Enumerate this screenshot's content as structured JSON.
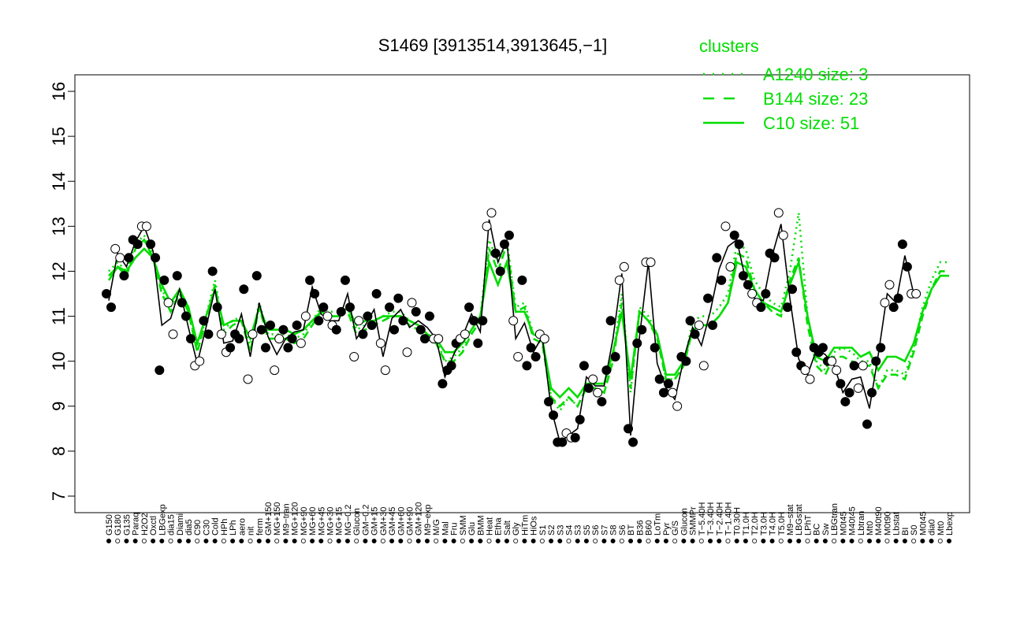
{
  "chart_data": {
    "type": "line",
    "title": "S1469 [3913514,3913645,−1]",
    "ylim": [
      7,
      16
    ],
    "yticks": [
      "7",
      "8",
      "9",
      "10",
      "11",
      "12",
      "13",
      "14",
      "15",
      "16"
    ],
    "xtick_labels": [
      "G150",
      "G180",
      "G135",
      "Paraq",
      "H2O2",
      "Oxctl",
      "LBGexp",
      "dia15",
      "Diami",
      "dia5",
      "C90",
      "C30",
      "Cold",
      "HPh",
      "LPh",
      "aero",
      "nit",
      "ferm",
      "GM+150",
      "MG+150",
      "M9−tran",
      "MG+120",
      "MG+90",
      "MG+60",
      "MG+45",
      "MG+30",
      "MG+15",
      "MG−0.2",
      "Glucon",
      "GM−0.2",
      "GM+15",
      "GM+30",
      "GM+45",
      "GM+60",
      "GM+90",
      "GM+120",
      "M9−exp",
      "M/G",
      "Mal",
      "Fru",
      "SMM",
      "Glu",
      "BMM",
      "Heat",
      "Etha",
      "Salt",
      "Gly",
      "HiTm",
      "HiOs",
      "S1",
      "S2",
      "S3",
      "S4",
      "S3",
      "S5",
      "S6",
      "S7",
      "S8",
      "S6",
      "BT",
      "B36",
      "B60",
      "LoTm",
      "Pyr",
      "G/S",
      "Glucon",
      "SMMPr",
      "T−5.40H",
      "T−3.40H",
      "T−2.40H",
      "T−1.40H",
      "T0.30H",
      "T1.0H",
      "T2.0H",
      "T3.0H",
      "T4.0H",
      "T5.0H",
      "M9−stat",
      "LBGstat",
      "LPhT",
      "BC",
      "Sw",
      "LBGtran",
      "M0t45",
      "M40t45",
      "Lbtran",
      "Mt0",
      "M40t90",
      "M0t90",
      "Lbstat",
      "BI",
      "S0",
      "M0t45",
      "dia0",
      "Mt0",
      "Lbexp"
    ],
    "series": [
      {
        "name": "A1240 size: 3",
        "style": "dotted",
        "values": [
          12.0,
          12.2,
          12.0,
          12.6,
          12.8,
          12.4,
          11.6,
          11.2,
          11.6,
          11.2,
          10.2,
          11.0,
          11.8,
          10.7,
          10.9,
          11.0,
          10.3,
          11.3,
          10.6,
          10.6,
          10.6,
          10.5,
          10.6,
          10.9,
          11.2,
          11.1,
          11.1,
          11.2,
          10.7,
          10.8,
          10.9,
          11.0,
          11.1,
          11.1,
          10.9,
          10.8,
          10.6,
          10.5,
          10.0,
          10.1,
          10.3,
          10.7,
          11.0,
          12.7,
          12.2,
          12.7,
          11.2,
          11.3,
          10.6,
          10.5,
          9.2,
          8.9,
          9.2,
          9.0,
          9.4,
          9.4,
          9.3,
          10.1,
          11.5,
          9.3,
          11.2,
          11.0,
          10.6,
          9.6,
          9.6,
          9.9,
          10.9,
          11.0,
          11.0,
          11.2,
          11.5,
          12.6,
          12.5,
          11.8,
          11.5,
          11.3,
          11.2,
          12.0,
          13.3,
          11.0,
          10.0,
          9.8,
          10.2,
          10.3,
          10.2,
          10.0,
          10.0,
          9.4,
          9.8,
          9.8,
          9.7,
          10.3,
          11.2,
          11.8,
          12.2,
          12.2
        ]
      },
      {
        "name": "B144 size: 23",
        "style": "dashed",
        "values": [
          11.9,
          12.1,
          11.9,
          12.5,
          12.7,
          12.3,
          11.5,
          11.1,
          11.5,
          11.1,
          10.2,
          10.9,
          11.7,
          10.6,
          10.8,
          10.9,
          10.2,
          11.2,
          10.5,
          10.5,
          10.5,
          10.4,
          10.5,
          10.8,
          11.1,
          11.0,
          11.0,
          11.1,
          10.6,
          10.7,
          10.8,
          10.9,
          11.0,
          11.0,
          10.8,
          10.7,
          10.5,
          10.4,
          10.0,
          10.0,
          10.2,
          10.6,
          10.9,
          12.5,
          12.0,
          12.6,
          11.1,
          11.2,
          10.5,
          10.4,
          9.2,
          9.0,
          9.2,
          9.0,
          9.4,
          9.4,
          9.3,
          10.0,
          11.3,
          9.4,
          11.1,
          10.9,
          10.5,
          9.6,
          9.6,
          9.9,
          10.7,
          10.8,
          10.8,
          11.0,
          11.3,
          12.4,
          12.3,
          11.6,
          11.3,
          11.1,
          11.0,
          11.8,
          12.3,
          10.8,
          9.9,
          9.7,
          10.1,
          10.1,
          10.0,
          9.9,
          9.9,
          9.4,
          9.7,
          9.7,
          9.6,
          10.2,
          11.0,
          11.6,
          12.0,
          12.0
        ]
      },
      {
        "name": "C10 size: 51",
        "style": "solid",
        "values": [
          11.8,
          12.1,
          12.0,
          12.3,
          12.5,
          12.3,
          11.7,
          11.3,
          11.6,
          11.2,
          10.4,
          11.0,
          11.6,
          10.8,
          10.9,
          10.9,
          10.5,
          11.2,
          10.7,
          10.7,
          10.7,
          10.6,
          10.7,
          10.9,
          11.1,
          11.0,
          11.0,
          11.2,
          10.8,
          10.9,
          10.9,
          11.0,
          11.0,
          11.0,
          10.9,
          10.8,
          10.6,
          10.5,
          10.2,
          10.2,
          10.4,
          10.7,
          11.0,
          12.2,
          11.7,
          12.2,
          11.1,
          11.1,
          10.6,
          10.5,
          9.4,
          9.2,
          9.4,
          9.2,
          9.5,
          9.5,
          9.5,
          10.2,
          11.1,
          9.6,
          11.1,
          10.9,
          10.6,
          9.7,
          9.7,
          10.0,
          10.7,
          10.8,
          10.8,
          11.0,
          11.3,
          12.2,
          12.1,
          11.6,
          11.3,
          11.2,
          11.1,
          11.7,
          12.2,
          11.0,
          10.1,
          10.0,
          10.3,
          10.3,
          10.3,
          10.1,
          10.2,
          9.8,
          10.1,
          10.1,
          10.0,
          10.4,
          11.1,
          11.6,
          11.9,
          11.9
        ]
      }
    ],
    "points": [
      [
        0,
        11.5
      ],
      [
        0,
        11.2
      ],
      [
        1,
        12.5
      ],
      [
        1,
        12.3
      ],
      [
        2,
        11.9
      ],
      [
        2,
        12.3
      ],
      [
        3,
        12.7
      ],
      [
        3,
        12.6
      ],
      [
        4,
        13.0
      ],
      [
        4,
        13.0
      ],
      [
        5,
        12.6
      ],
      [
        5,
        12.3
      ],
      [
        6,
        9.8
      ],
      [
        6,
        11.8
      ],
      [
        7,
        11.3
      ],
      [
        7,
        10.6
      ],
      [
        8,
        11.9
      ],
      [
        8,
        11.3
      ],
      [
        9,
        11.0
      ],
      [
        9,
        10.5
      ],
      [
        10,
        9.9
      ],
      [
        10,
        10.0
      ],
      [
        11,
        10.9
      ],
      [
        11,
        10.6
      ],
      [
        12,
        12.0
      ],
      [
        12,
        11.2
      ],
      [
        13,
        10.6
      ],
      [
        13,
        10.2
      ],
      [
        14,
        10.3
      ],
      [
        14,
        10.6
      ],
      [
        15,
        10.5
      ],
      [
        15,
        11.6
      ],
      [
        16,
        9.6
      ],
      [
        16,
        10.6
      ],
      [
        17,
        11.9
      ],
      [
        17,
        10.7
      ],
      [
        18,
        10.3
      ],
      [
        18,
        10.8
      ],
      [
        19,
        9.8
      ],
      [
        19,
        10.5
      ],
      [
        20,
        10.7
      ],
      [
        20,
        10.3
      ],
      [
        21,
        10.5
      ],
      [
        21,
        10.8
      ],
      [
        22,
        10.4
      ],
      [
        22,
        11.0
      ],
      [
        23,
        11.8
      ],
      [
        23,
        11.5
      ],
      [
        24,
        10.9
      ],
      [
        24,
        11.2
      ],
      [
        25,
        11.0
      ],
      [
        25,
        10.8
      ],
      [
        26,
        10.7
      ],
      [
        26,
        11.1
      ],
      [
        27,
        11.8
      ],
      [
        27,
        11.2
      ],
      [
        28,
        10.1
      ],
      [
        28,
        10.9
      ],
      [
        29,
        10.6
      ],
      [
        29,
        11.0
      ],
      [
        30,
        10.8
      ],
      [
        30,
        11.5
      ],
      [
        31,
        10.4
      ],
      [
        31,
        9.8
      ],
      [
        32,
        11.2
      ],
      [
        32,
        10.7
      ],
      [
        33,
        11.4
      ],
      [
        33,
        10.9
      ],
      [
        34,
        10.2
      ],
      [
        34,
        11.3
      ],
      [
        35,
        11.1
      ],
      [
        35,
        10.7
      ],
      [
        36,
        10.5
      ],
      [
        36,
        11.0
      ],
      [
        37,
        10.5
      ],
      [
        37,
        10.5
      ],
      [
        38,
        9.5
      ],
      [
        38,
        9.8
      ],
      [
        39,
        9.9
      ],
      [
        39,
        10.4
      ],
      [
        40,
        10.5
      ],
      [
        40,
        10.6
      ],
      [
        41,
        11.2
      ],
      [
        41,
        10.9
      ],
      [
        42,
        10.4
      ],
      [
        42,
        10.9
      ],
      [
        43,
        13.0
      ],
      [
        43,
        13.3
      ],
      [
        44,
        12.4
      ],
      [
        44,
        12.0
      ],
      [
        45,
        12.6
      ],
      [
        45,
        12.8
      ],
      [
        46,
        10.9
      ],
      [
        46,
        10.1
      ],
      [
        47,
        11.8
      ],
      [
        47,
        9.9
      ],
      [
        48,
        10.3
      ],
      [
        48,
        10.1
      ],
      [
        49,
        10.6
      ],
      [
        49,
        10.5
      ],
      [
        50,
        9.1
      ],
      [
        50,
        8.8
      ],
      [
        51,
        8.2
      ],
      [
        51,
        8.2
      ],
      [
        52,
        8.4
      ],
      [
        52,
        8.3
      ],
      [
        53,
        8.3
      ],
      [
        53,
        8.7
      ],
      [
        54,
        9.9
      ],
      [
        54,
        9.4
      ],
      [
        55,
        9.6
      ],
      [
        55,
        9.3
      ],
      [
        56,
        9.1
      ],
      [
        56,
        9.8
      ],
      [
        57,
        10.9
      ],
      [
        57,
        10.1
      ],
      [
        58,
        11.8
      ],
      [
        58,
        12.1
      ],
      [
        59,
        8.5
      ],
      [
        59,
        8.2
      ],
      [
        60,
        10.4
      ],
      [
        60,
        10.7
      ],
      [
        61,
        12.2
      ],
      [
        61,
        12.2
      ],
      [
        62,
        10.3
      ],
      [
        62,
        9.6
      ],
      [
        63,
        9.3
      ],
      [
        63,
        9.5
      ],
      [
        64,
        9.3
      ],
      [
        64,
        9.0
      ],
      [
        65,
        10.1
      ],
      [
        65,
        10.0
      ],
      [
        66,
        10.9
      ],
      [
        66,
        10.6
      ],
      [
        67,
        10.8
      ],
      [
        67,
        9.9
      ],
      [
        68,
        11.4
      ],
      [
        68,
        10.8
      ],
      [
        69,
        12.3
      ],
      [
        69,
        11.8
      ],
      [
        70,
        13.0
      ],
      [
        70,
        12.1
      ],
      [
        71,
        12.8
      ],
      [
        71,
        12.6
      ],
      [
        72,
        11.9
      ],
      [
        72,
        11.7
      ],
      [
        73,
        11.5
      ],
      [
        73,
        11.3
      ],
      [
        74,
        11.2
      ],
      [
        74,
        11.5
      ],
      [
        75,
        12.4
      ],
      [
        75,
        12.3
      ],
      [
        76,
        13.3
      ],
      [
        76,
        12.8
      ],
      [
        77,
        11.2
      ],
      [
        77,
        11.6
      ],
      [
        78,
        10.2
      ],
      [
        78,
        9.9
      ],
      [
        79,
        9.8
      ],
      [
        79,
        9.6
      ],
      [
        80,
        10.3
      ],
      [
        80,
        10.2
      ],
      [
        81,
        10.3
      ],
      [
        81,
        10.0
      ],
      [
        82,
        10.0
      ],
      [
        82,
        9.8
      ],
      [
        83,
        9.5
      ],
      [
        83,
        9.1
      ],
      [
        84,
        9.3
      ],
      [
        84,
        9.9
      ],
      [
        85,
        9.4
      ],
      [
        85,
        9.9
      ],
      [
        86,
        8.6
      ],
      [
        86,
        9.3
      ],
      [
        87,
        10.0
      ],
      [
        87,
        10.3
      ],
      [
        88,
        11.3
      ],
      [
        88,
        11.7
      ],
      [
        89,
        11.2
      ],
      [
        89,
        11.4
      ],
      [
        90,
        12.6
      ],
      [
        90,
        12.1
      ],
      [
        91,
        11.5
      ],
      [
        91,
        11.5
      ]
    ],
    "legend": {
      "title": "clusters",
      "position": "top-right",
      "entries": [
        "A1240 size: 3",
        "B144 size: 23",
        "C10 size: 51"
      ]
    },
    "colors": {
      "line": "#00dd00",
      "filled_point": "#000000",
      "open_point": "#ffffff"
    }
  }
}
